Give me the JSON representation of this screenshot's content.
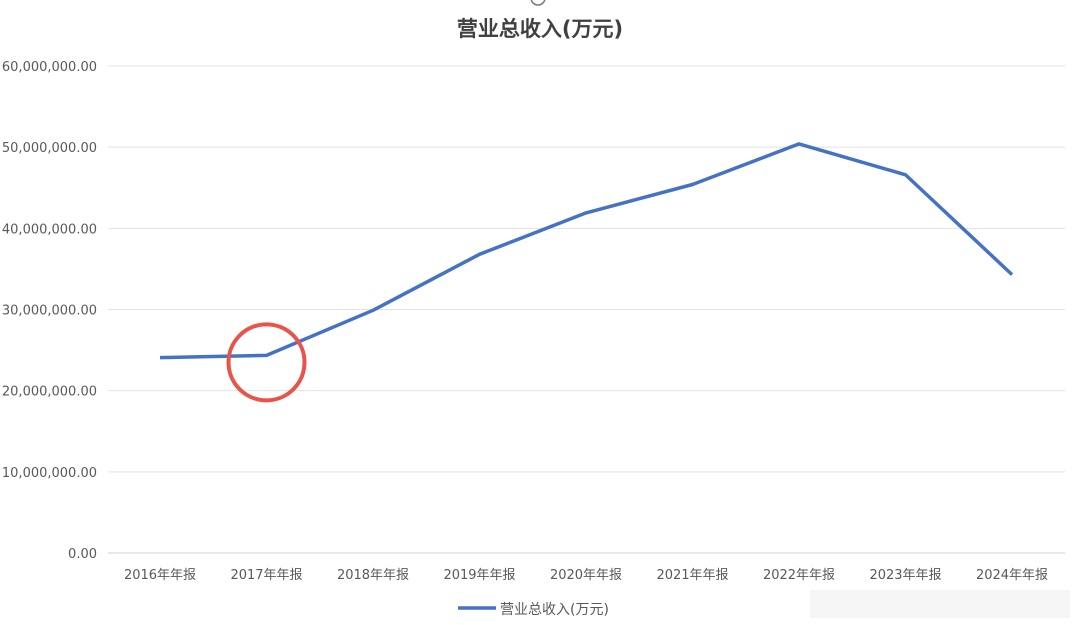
{
  "chart_data": {
    "type": "line",
    "title": "营业总收入(万元)",
    "xlabel": "",
    "ylabel": "",
    "categories": [
      "2016年年报",
      "2017年年报",
      "2018年年报",
      "2019年年报",
      "2020年年报",
      "2021年年报",
      "2022年年报",
      "2023年年报",
      "2024年年报"
    ],
    "series": [
      {
        "name": "营业总收入(万元)",
        "color": "#4472c4",
        "values": [
          24070000,
          24350000,
          29900000,
          36800000,
          41900000,
          45400000,
          50400000,
          46600000,
          34300000
        ]
      }
    ],
    "ylim": [
      0,
      60000000
    ],
    "yticks": [
      0,
      10000000,
      20000000,
      30000000,
      40000000,
      50000000,
      60000000
    ],
    "ytick_labels": [
      "0.00",
      "10,000,000.00",
      "20,000,000.00",
      "30,000,000.00",
      "40,000,000.00",
      "50,000,000.00",
      "60,000,000.00"
    ],
    "grid": true,
    "legend_position": "bottom",
    "annotation": {
      "shape": "circle",
      "color": "#e8534a",
      "category": "2017年年报"
    }
  }
}
